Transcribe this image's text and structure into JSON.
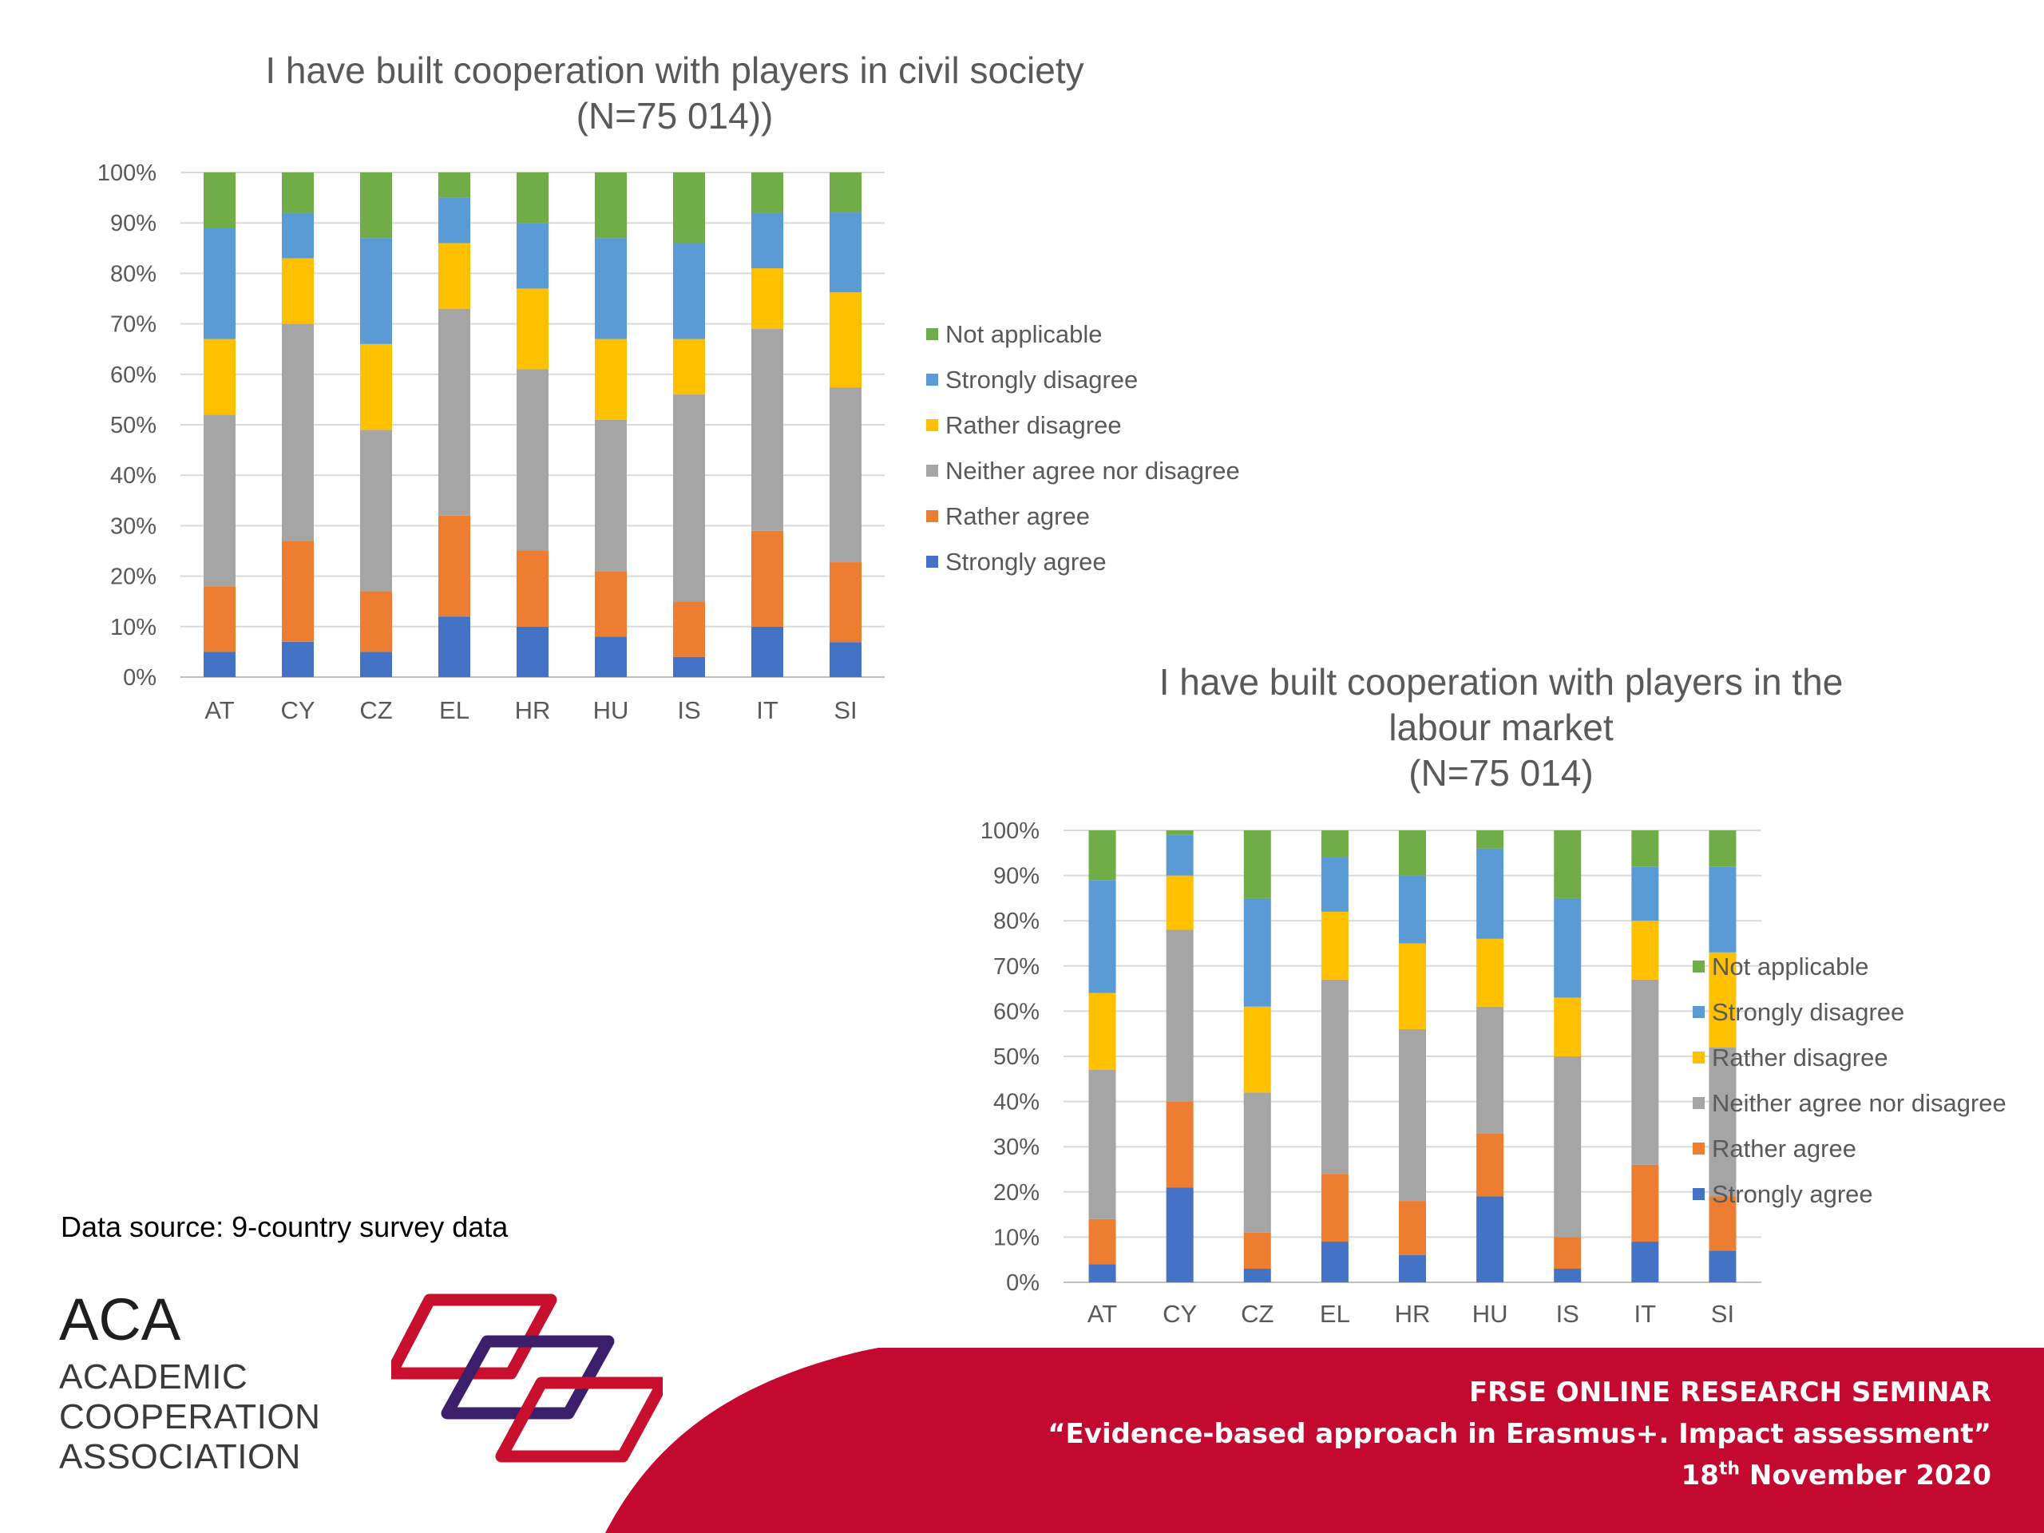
{
  "series_colors": {
    "Strongly agree": "#4472C4",
    "Rather agree": "#ED7D31",
    "Neither agree nor disagree": "#A5A5A5",
    "Rather disagree": "#FFC000",
    "Strongly disagree": "#5B9BD5",
    "Not applicable": "#70AD47"
  },
  "source_note": "Data source: 9-country survey data",
  "logo": {
    "abbr": "ACA",
    "line1": "ACADEMIC",
    "line2": "COOPERATION",
    "line3": "ASSOCIATION",
    "mark_colors": [
      "#c8102e",
      "#3b1f6b",
      "#c8102e"
    ]
  },
  "banner": {
    "color": "#c3092f",
    "line1": "FRSE ONLINE RESEARCH SEMINAR",
    "line2": "“Evidence-based approach in Erasmus+. Impact assessment”",
    "line3_day": "18",
    "line3_sup": "th",
    "line3_rest": " November 2020"
  },
  "chart_data": [
    {
      "type": "bar",
      "stacked": true,
      "percent": true,
      "title_line1": "I have built cooperation with players in civil society",
      "title_line2": "(N=75 014))",
      "title_line3": "",
      "categories": [
        "AT",
        "CY",
        "CZ",
        "EL",
        "HR",
        "HU",
        "IS",
        "IT",
        "SI"
      ],
      "ylim": [
        0,
        100
      ],
      "yticks": [
        "0%",
        "10%",
        "20%",
        "30%",
        "40%",
        "50%",
        "60%",
        "70%",
        "80%",
        "90%",
        "100%"
      ],
      "grid": true,
      "legend_position": "right",
      "legend_order": [
        "Not applicable",
        "Strongly disagree",
        "Rather disagree",
        "Neither agree nor disagree",
        "Rather agree",
        "Strongly agree"
      ],
      "series": [
        {
          "name": "Strongly agree",
          "values": [
            5,
            7,
            5,
            12,
            10,
            8,
            4,
            10,
            7
          ]
        },
        {
          "name": "Rather agree",
          "values": [
            13,
            20,
            12,
            20,
            15,
            13,
            11,
            19,
            16
          ]
        },
        {
          "name": "Neither agree nor disagree",
          "values": [
            34,
            43,
            32,
            41,
            36,
            30,
            41,
            40,
            35
          ]
        },
        {
          "name": "Rather disagree",
          "values": [
            15,
            13,
            17,
            13,
            16,
            16,
            11,
            12,
            19
          ]
        },
        {
          "name": "Strongly disagree",
          "values": [
            22,
            9,
            21,
            9,
            13,
            20,
            19,
            11,
            16
          ]
        },
        {
          "name": "Not applicable",
          "values": [
            11,
            8,
            13,
            5,
            10,
            13,
            14,
            8,
            8
          ]
        }
      ]
    },
    {
      "type": "bar",
      "stacked": true,
      "percent": true,
      "title_line1": "I have built cooperation with players in the",
      "title_line2": "labour market",
      "title_line3": "(N=75 014)",
      "categories": [
        "AT",
        "CY",
        "CZ",
        "EL",
        "HR",
        "HU",
        "IS",
        "IT",
        "SI"
      ],
      "ylim": [
        0,
        100
      ],
      "yticks": [
        "0%",
        "10%",
        "20%",
        "30%",
        "40%",
        "50%",
        "60%",
        "70%",
        "80%",
        "90%",
        "100%"
      ],
      "grid": true,
      "legend_position": "right",
      "legend_order": [
        "Not applicable",
        "Strongly disagree",
        "Rather disagree",
        "Neither agree nor disagree",
        "Rather agree",
        "Strongly agree"
      ],
      "series": [
        {
          "name": "Strongly agree",
          "values": [
            4,
            21,
            3,
            9,
            6,
            19,
            3,
            9,
            7
          ]
        },
        {
          "name": "Rather agree",
          "values": [
            10,
            19,
            8,
            15,
            12,
            14,
            7,
            17,
            12
          ]
        },
        {
          "name": "Neither agree nor disagree",
          "values": [
            33,
            38,
            31,
            43,
            38,
            28,
            40,
            41,
            33
          ]
        },
        {
          "name": "Rather disagree",
          "values": [
            17,
            12,
            19,
            15,
            19,
            15,
            13,
            13,
            21
          ]
        },
        {
          "name": "Strongly disagree",
          "values": [
            25,
            9,
            24,
            12,
            15,
            20,
            22,
            12,
            19
          ]
        },
        {
          "name": "Not applicable",
          "values": [
            11,
            1,
            15,
            6,
            10,
            4,
            15,
            8,
            8
          ]
        }
      ]
    }
  ]
}
